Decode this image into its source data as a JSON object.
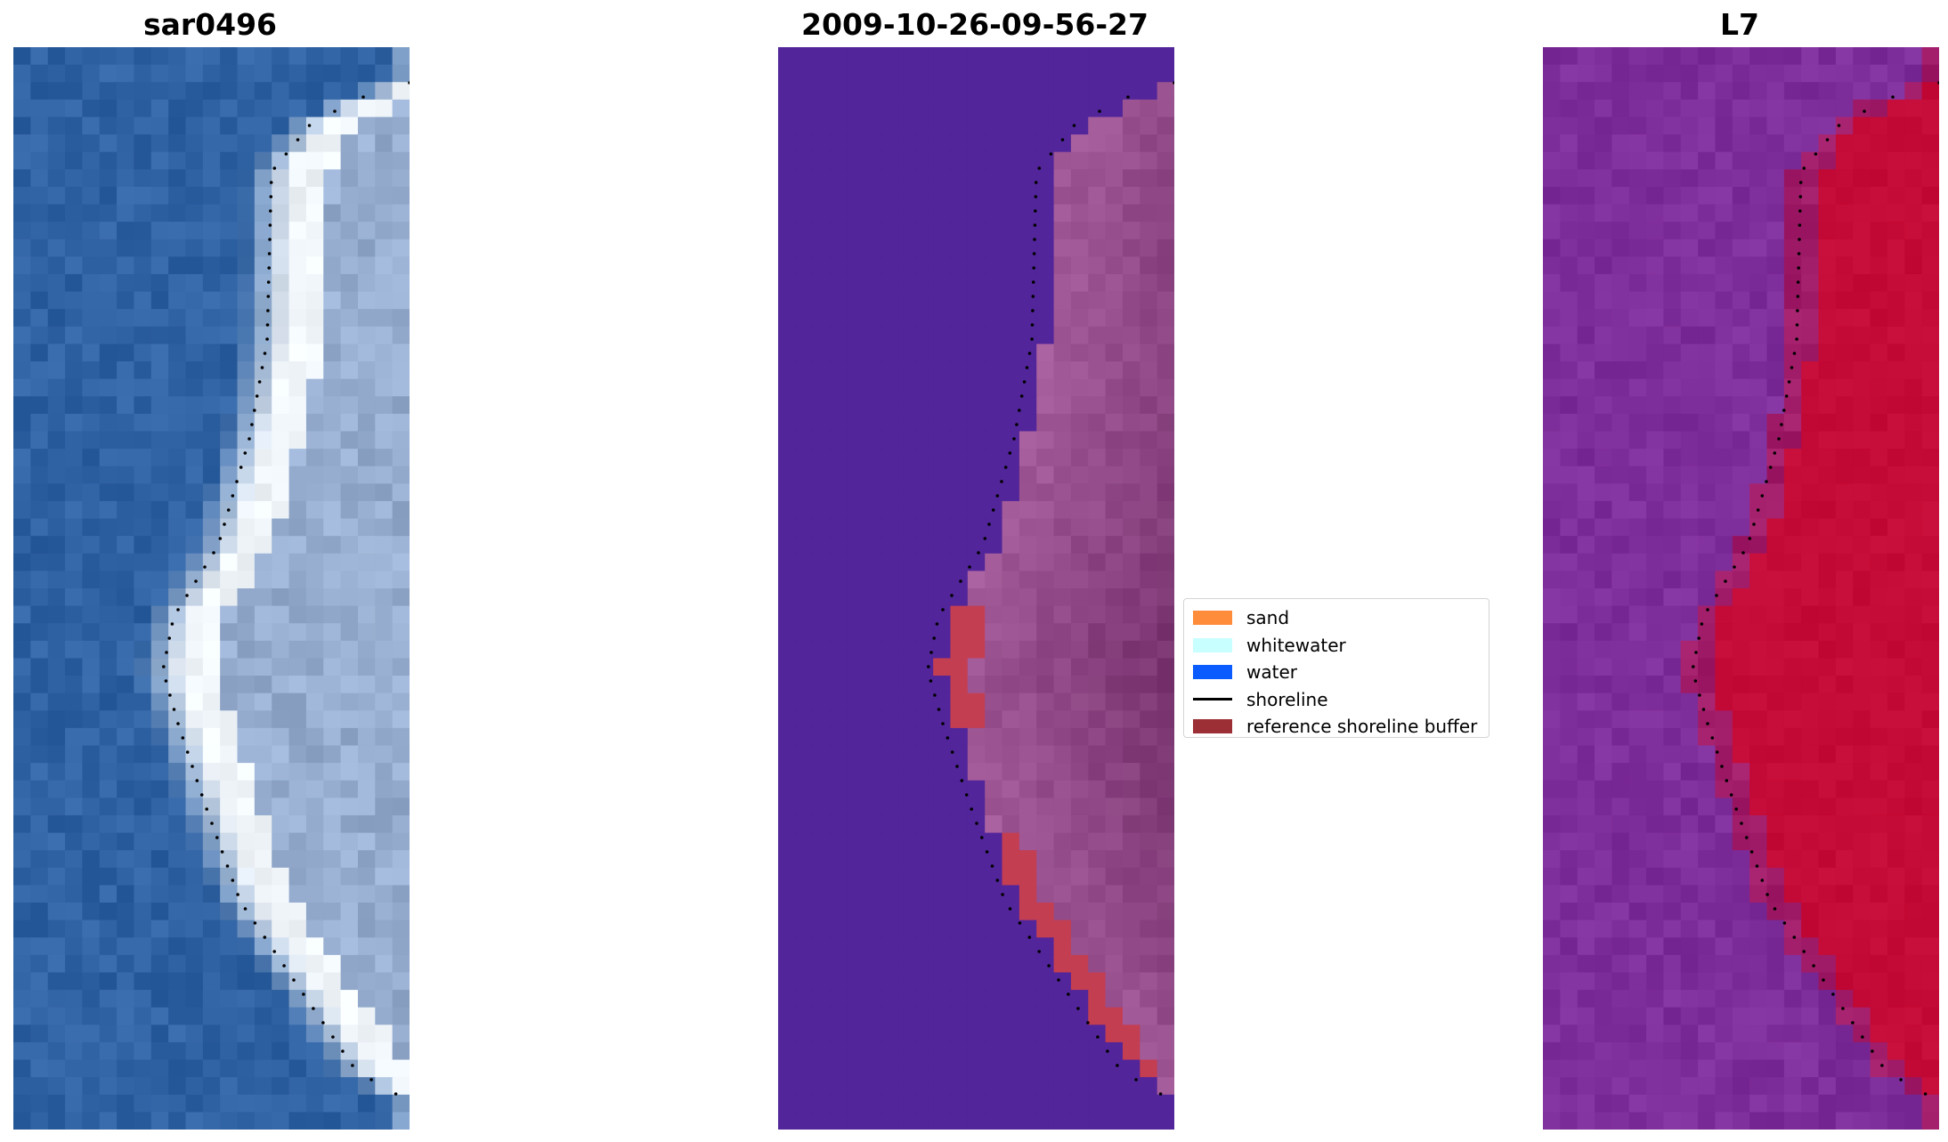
{
  "panels": [
    {
      "title": "sar0496",
      "kind": "rgb"
    },
    {
      "title": "2009-10-26-09-56-27",
      "kind": "classified"
    },
    {
      "title": "L7",
      "kind": "index"
    }
  ],
  "legend": {
    "items": [
      {
        "label": "sand",
        "color": "#ff8c3a"
      },
      {
        "label": "whitewater",
        "color": "#c8ffff"
      },
      {
        "label": "water",
        "color": "#0a5cff"
      },
      {
        "label": "shoreline",
        "color": "#000000",
        "kind": "line"
      },
      {
        "label": "reference shoreline buffer",
        "color": "#9b2f35"
      }
    ]
  },
  "colors": {
    "rgb_water": "#2f62a3",
    "rgb_sand": "#cdd6e6",
    "class_water": "#52259a",
    "class_land": "#a25a98",
    "class_buffer": "#c43e52",
    "index_water": "#7e2e9a",
    "index_land": "#c40a36"
  }
}
